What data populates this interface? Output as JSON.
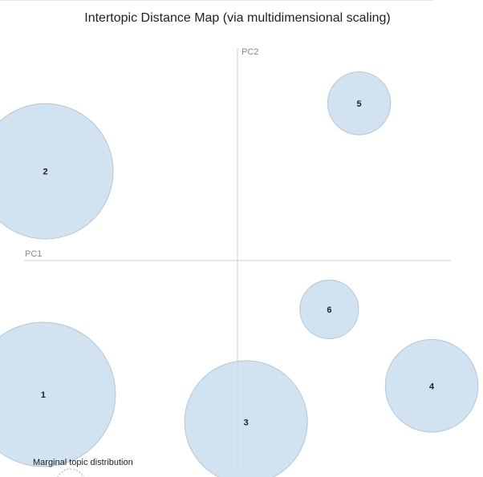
{
  "title": "Intertopic Distance Map (via multidimensional scaling)",
  "chart_data": {
    "type": "scatter",
    "title": "Intertopic Distance Map (via multidimensional scaling)",
    "xlabel": "PC1",
    "ylabel": "PC2",
    "xlim": [
      -1,
      1
    ],
    "ylim": [
      -1,
      1
    ],
    "grid": false,
    "points": [
      {
        "topic": "1",
        "x": -0.91,
        "y": -0.63,
        "size": 0.04
      },
      {
        "topic": "2",
        "x": -0.9,
        "y": 0.42,
        "size": 0.0352
      },
      {
        "topic": "3",
        "x": 0.04,
        "y": -0.76,
        "size": 0.0289
      },
      {
        "topic": "4",
        "x": 0.91,
        "y": -0.59,
        "size": 0.0165
      },
      {
        "topic": "5",
        "x": 0.57,
        "y": 0.74,
        "size": 0.0076
      },
      {
        "topic": "6",
        "x": 0.43,
        "y": -0.23,
        "size": 0.0066
      }
    ],
    "colors": {
      "fill": "#c6dbec",
      "stroke": "#b6c6d4",
      "axis": "#cccccc"
    }
  },
  "legend": {
    "title": "Marginal topic distribution"
  }
}
